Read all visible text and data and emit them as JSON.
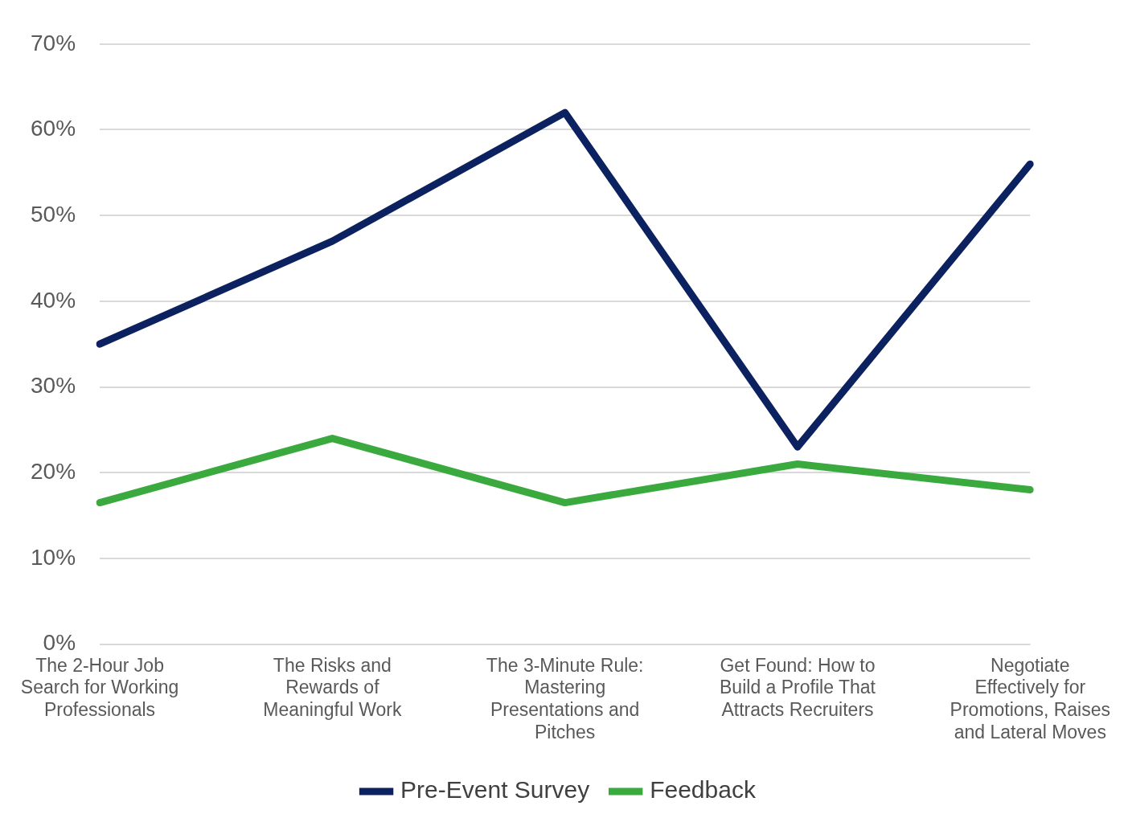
{
  "chart_data": {
    "type": "line",
    "categories": [
      "The 2-Hour Job Search for Working Professionals",
      "The Risks and Rewards of Meaningful Work",
      "The 3-Minute Rule: Mastering Presentations and Pitches",
      "Get Found: How to Build a Profile That Attracts Recruiters",
      "Negotiate Effectively for Promotions, Raises and Lateral Moves"
    ],
    "series": [
      {
        "name": "Pre-Event Survey",
        "color": "#0c2260",
        "values": [
          35,
          47,
          62,
          23,
          56
        ]
      },
      {
        "name": "Feedback",
        "color": "#3aaa3e",
        "values": [
          16.5,
          24,
          16.5,
          21,
          18
        ]
      }
    ],
    "ylim": [
      0,
      70
    ],
    "yticks": [
      {
        "value": 0,
        "label": "0%"
      },
      {
        "value": 10,
        "label": "10%"
      },
      {
        "value": 20,
        "label": "20%"
      },
      {
        "value": 30,
        "label": "30%"
      },
      {
        "value": 40,
        "label": "40%"
      },
      {
        "value": 50,
        "label": "50%"
      },
      {
        "value": 60,
        "label": "60%"
      },
      {
        "value": 70,
        "label": "70%"
      }
    ],
    "grid": "y",
    "legend": "bottom",
    "marker": "none",
    "line_style": "solid"
  }
}
